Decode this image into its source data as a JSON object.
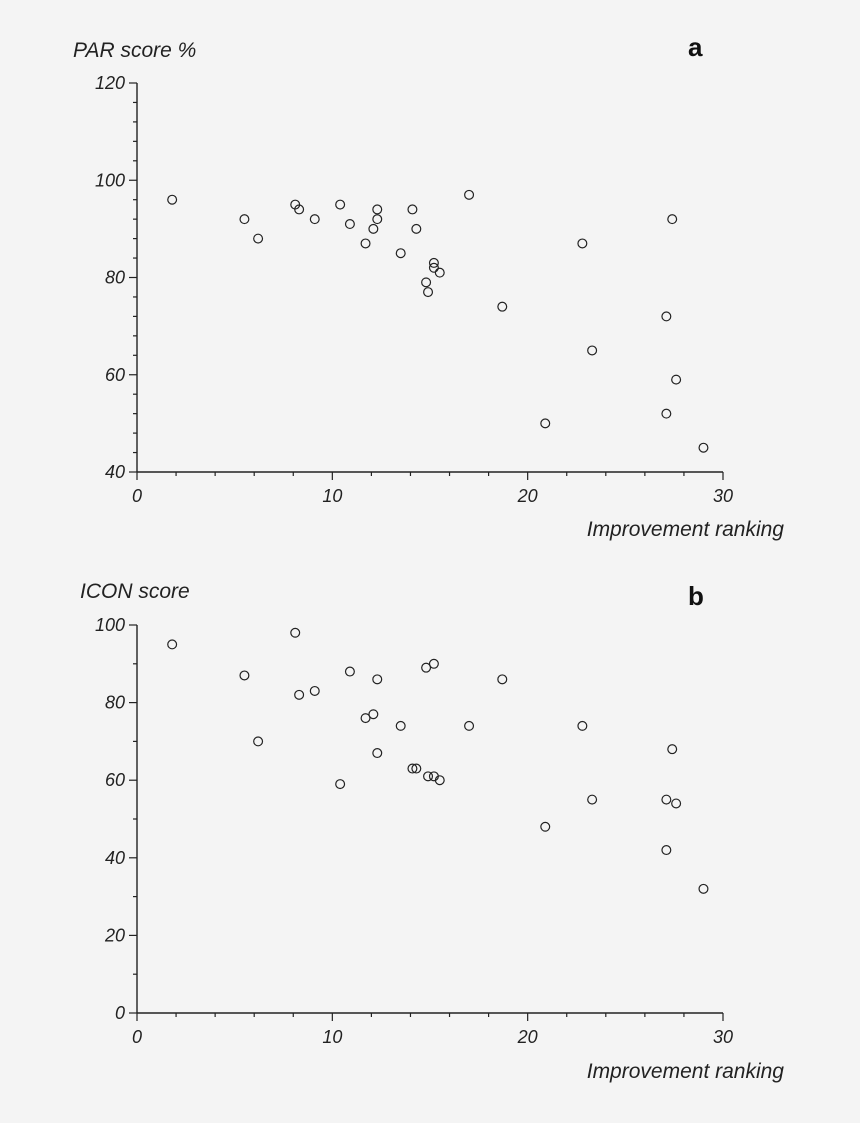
{
  "chart_data": [
    {
      "type": "scatter",
      "panel_label": "a",
      "ylabel": "PAR score %",
      "xlabel": "Improvement ranking",
      "xlim": [
        0,
        30
      ],
      "ylim": [
        40,
        120
      ],
      "x_ticks": [
        0,
        10,
        20,
        30
      ],
      "y_ticks": [
        40,
        60,
        80,
        100,
        120
      ],
      "x_tick_labels": [
        "0",
        "10",
        "20",
        "30"
      ],
      "y_tick_labels": [
        "40",
        "60",
        "80",
        "100",
        "120"
      ],
      "grid": false,
      "series": [
        {
          "points": [
            {
              "x": 1.8,
              "y": 96
            },
            {
              "x": 5.5,
              "y": 92
            },
            {
              "x": 6.2,
              "y": 88
            },
            {
              "x": 8.1,
              "y": 95
            },
            {
              "x": 8.3,
              "y": 94
            },
            {
              "x": 9.1,
              "y": 92
            },
            {
              "x": 10.4,
              "y": 95
            },
            {
              "x": 10.9,
              "y": 91
            },
            {
              "x": 11.7,
              "y": 87
            },
            {
              "x": 12.1,
              "y": 90
            },
            {
              "x": 12.3,
              "y": 92
            },
            {
              "x": 12.3,
              "y": 94
            },
            {
              "x": 13.5,
              "y": 85
            },
            {
              "x": 14.1,
              "y": 94
            },
            {
              "x": 14.3,
              "y": 90
            },
            {
              "x": 14.8,
              "y": 79
            },
            {
              "x": 14.9,
              "y": 77
            },
            {
              "x": 15.2,
              "y": 83
            },
            {
              "x": 15.2,
              "y": 82
            },
            {
              "x": 15.5,
              "y": 81
            },
            {
              "x": 17.0,
              "y": 97
            },
            {
              "x": 18.7,
              "y": 74
            },
            {
              "x": 20.9,
              "y": 50
            },
            {
              "x": 22.8,
              "y": 87
            },
            {
              "x": 23.3,
              "y": 65
            },
            {
              "x": 27.1,
              "y": 72
            },
            {
              "x": 27.1,
              "y": 52
            },
            {
              "x": 27.4,
              "y": 92
            },
            {
              "x": 27.6,
              "y": 59
            },
            {
              "x": 29.0,
              "y": 45
            }
          ]
        }
      ]
    },
    {
      "type": "scatter",
      "panel_label": "b",
      "ylabel": "ICON score",
      "xlabel": "Improvement ranking",
      "xlim": [
        0,
        30
      ],
      "ylim": [
        0,
        100
      ],
      "x_ticks": [
        0,
        10,
        20,
        30
      ],
      "y_ticks": [
        0,
        20,
        40,
        60,
        80,
        100
      ],
      "x_tick_labels": [
        "0",
        "10",
        "20",
        "30"
      ],
      "y_tick_labels": [
        "0",
        "20",
        "40",
        "60",
        "80",
        "100"
      ],
      "grid": false,
      "series": [
        {
          "points": [
            {
              "x": 1.8,
              "y": 95
            },
            {
              "x": 5.5,
              "y": 87
            },
            {
              "x": 6.2,
              "y": 70
            },
            {
              "x": 8.1,
              "y": 98
            },
            {
              "x": 8.3,
              "y": 82
            },
            {
              "x": 9.1,
              "y": 83
            },
            {
              "x": 10.4,
              "y": 59
            },
            {
              "x": 10.9,
              "y": 88
            },
            {
              "x": 11.7,
              "y": 76
            },
            {
              "x": 12.1,
              "y": 77
            },
            {
              "x": 12.3,
              "y": 86
            },
            {
              "x": 12.3,
              "y": 67
            },
            {
              "x": 13.5,
              "y": 74
            },
            {
              "x": 14.1,
              "y": 63
            },
            {
              "x": 14.3,
              "y": 63
            },
            {
              "x": 14.8,
              "y": 89
            },
            {
              "x": 14.9,
              "y": 61
            },
            {
              "x": 15.2,
              "y": 90
            },
            {
              "x": 15.2,
              "y": 61
            },
            {
              "x": 15.5,
              "y": 60
            },
            {
              "x": 17.0,
              "y": 74
            },
            {
              "x": 18.7,
              "y": 86
            },
            {
              "x": 20.9,
              "y": 48
            },
            {
              "x": 22.8,
              "y": 74
            },
            {
              "x": 23.3,
              "y": 55
            },
            {
              "x": 27.1,
              "y": 55
            },
            {
              "x": 27.1,
              "y": 42
            },
            {
              "x": 27.4,
              "y": 68
            },
            {
              "x": 27.6,
              "y": 54
            },
            {
              "x": 29.0,
              "y": 32
            }
          ]
        }
      ]
    }
  ]
}
